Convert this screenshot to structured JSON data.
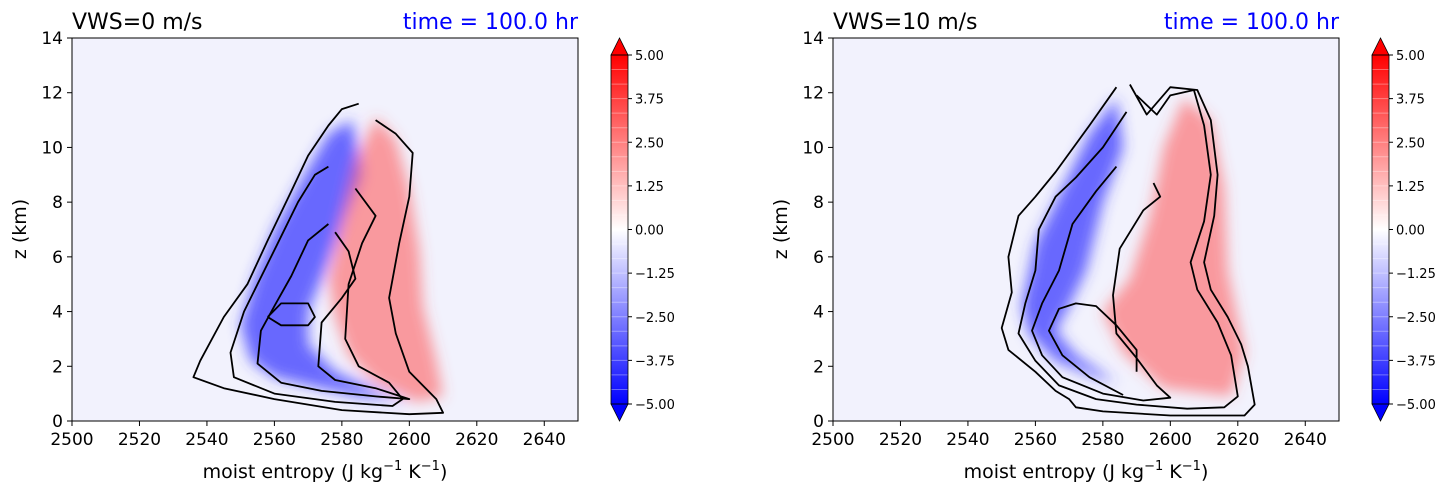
{
  "chart_data": [
    {
      "type": "contour",
      "title": "VWS=0 m/s",
      "time_label": "time = 100.0 hr",
      "xlabel": "moist entropy (J kg",
      "xlabel_sup1": "−1",
      "xlabel_mid": " K",
      "xlabel_sup2": "−1",
      "xlabel_end": ")",
      "ylabel": "z (km)",
      "xlim": [
        2500,
        2650
      ],
      "ylim": [
        0,
        14
      ],
      "xticks": [
        "2500",
        "2520",
        "2540",
        "2560",
        "2580",
        "2600",
        "2620",
        "2640"
      ],
      "yticks": [
        "0",
        "2",
        "4",
        "6",
        "8",
        "10",
        "12",
        "14"
      ],
      "colorbar_ticks": [
        "5.00",
        "3.75",
        "2.50",
        "1.25",
        "0.00",
        "−1.25",
        "−2.50",
        "−3.75",
        "−5.00"
      ],
      "colorbar_range": [
        -5,
        5
      ],
      "colormap": "bwr",
      "neg_lobe": [
        [
          2553,
          2.2
        ],
        [
          2550,
          3.5
        ],
        [
          2554,
          5.2
        ],
        [
          2560,
          7.0
        ],
        [
          2568,
          8.8
        ],
        [
          2576,
          10.5
        ],
        [
          2583,
          11.0
        ],
        [
          2586,
          9.0
        ],
        [
          2580,
          7.2
        ],
        [
          2575,
          5.5
        ],
        [
          2570,
          4.0
        ],
        [
          2570,
          2.8
        ],
        [
          2578,
          1.8
        ],
        [
          2592,
          1.0
        ],
        [
          2600,
          0.7
        ],
        [
          2585,
          0.9
        ],
        [
          2570,
          1.3
        ],
        [
          2560,
          1.6
        ]
      ],
      "pos_lobe": [
        [
          2576,
          5.2
        ],
        [
          2578,
          3.8
        ],
        [
          2582,
          2.4
        ],
        [
          2590,
          1.4
        ],
        [
          2602,
          0.7
        ],
        [
          2610,
          0.9
        ],
        [
          2608,
          2.2
        ],
        [
          2604,
          4.2
        ],
        [
          2603,
          6.2
        ],
        [
          2600,
          8.5
        ],
        [
          2596,
          10.3
        ],
        [
          2590,
          11.1
        ],
        [
          2584,
          9.5
        ],
        [
          2580,
          7.5
        ]
      ],
      "contours": [
        [
          [
            2558,
            3.8
          ],
          [
            2562,
            4.3
          ],
          [
            2570,
            4.3
          ],
          [
            2572,
            3.8
          ],
          [
            2570,
            3.5
          ],
          [
            2562,
            3.5
          ],
          [
            2558,
            3.8
          ]
        ],
        [
          [
            2576,
            7.2
          ],
          [
            2570,
            6.6
          ],
          [
            2565,
            5.3
          ],
          [
            2560,
            4.2
          ],
          [
            2556,
            3.3
          ],
          [
            2555,
            2.1
          ],
          [
            2562,
            1.4
          ],
          [
            2574,
            1.1
          ],
          [
            2590,
            0.9
          ],
          [
            2600,
            0.8
          ],
          [
            2590,
            1.2
          ],
          [
            2578,
            1.5
          ],
          [
            2573,
            2.0
          ],
          [
            2574,
            3.6
          ],
          [
            2580,
            4.5
          ],
          [
            2584,
            5.2
          ],
          [
            2582,
            6.2
          ],
          [
            2578,
            6.9
          ]
        ],
        [
          [
            2576,
            9.3
          ],
          [
            2572,
            9.0
          ],
          [
            2567,
            8.0
          ],
          [
            2561,
            6.5
          ],
          [
            2555,
            5.0
          ],
          [
            2551,
            4.0
          ],
          [
            2547,
            2.5
          ],
          [
            2548,
            1.6
          ],
          [
            2560,
            1.0
          ],
          [
            2578,
            0.7
          ],
          [
            2595,
            0.55
          ],
          [
            2598,
            0.8
          ],
          [
            2594,
            1.4
          ],
          [
            2585,
            2.0
          ],
          [
            2581,
            3.0
          ],
          [
            2582,
            5.0
          ],
          [
            2586,
            6.5
          ],
          [
            2590,
            7.5
          ],
          [
            2584,
            8.5
          ]
        ],
        [
          [
            2585,
            11.6
          ],
          [
            2580,
            11.4
          ],
          [
            2576,
            10.8
          ],
          [
            2570,
            9.7
          ],
          [
            2565,
            8.4
          ],
          [
            2558,
            6.6
          ],
          [
            2552,
            5.0
          ],
          [
            2545,
            3.8
          ],
          [
            2538,
            2.2
          ],
          [
            2536,
            1.6
          ],
          [
            2545,
            1.2
          ],
          [
            2560,
            0.8
          ],
          [
            2580,
            0.4
          ],
          [
            2600,
            0.25
          ],
          [
            2610,
            0.3
          ],
          [
            2608,
            0.8
          ],
          [
            2600,
            1.8
          ],
          [
            2596,
            3.2
          ],
          [
            2594,
            4.5
          ],
          [
            2597,
            6.5
          ],
          [
            2600,
            8.2
          ],
          [
            2601,
            9.8
          ],
          [
            2596,
            10.5
          ],
          [
            2590,
            11.0
          ]
        ]
      ]
    },
    {
      "type": "contour",
      "title": "VWS=10 m/s",
      "time_label": "time = 100.0 hr",
      "xlabel": "moist entropy (J kg",
      "xlabel_sup1": "−1",
      "xlabel_mid": " K",
      "xlabel_sup2": "−1",
      "xlabel_end": ")",
      "ylabel": "z (km)",
      "xlim": [
        2500,
        2650
      ],
      "ylim": [
        0,
        14
      ],
      "xticks": [
        "2500",
        "2520",
        "2540",
        "2560",
        "2580",
        "2600",
        "2620",
        "2640"
      ],
      "yticks": [
        "0",
        "2",
        "4",
        "6",
        "8",
        "10",
        "12",
        "14"
      ],
      "colorbar_ticks": [
        "5.00",
        "3.75",
        "2.50",
        "1.25",
        "0.00",
        "−1.25",
        "−2.50",
        "−3.75",
        "−5.00"
      ],
      "colorbar_range": [
        -5,
        5
      ],
      "colormap": "bwr",
      "neg_lobe": [
        [
          2558,
          3.2
        ],
        [
          2556,
          4.2
        ],
        [
          2560,
          6.5
        ],
        [
          2568,
          8.5
        ],
        [
          2576,
          10.5
        ],
        [
          2584,
          11.8
        ],
        [
          2586,
          10.0
        ],
        [
          2580,
          8.0
        ],
        [
          2575,
          5.5
        ],
        [
          2570,
          4.2
        ],
        [
          2566,
          3.3
        ],
        [
          2572,
          2.4
        ],
        [
          2584,
          1.4
        ],
        [
          2590,
          1.2
        ],
        [
          2578,
          1.6
        ],
        [
          2566,
          2.2
        ]
      ],
      "pos_lobe": [
        [
          2580,
          4.0
        ],
        [
          2586,
          2.5
        ],
        [
          2598,
          1.2
        ],
        [
          2618,
          0.9
        ],
        [
          2622,
          2.5
        ],
        [
          2617,
          5.5
        ],
        [
          2616,
          8.5
        ],
        [
          2612,
          11.0
        ],
        [
          2604,
          11.8
        ],
        [
          2598,
          10.0
        ],
        [
          2594,
          7.5
        ],
        [
          2588,
          5.2
        ]
      ],
      "contours": [
        [
          [
            2586,
            0.95
          ],
          [
            2576,
            1.6
          ],
          [
            2568,
            2.4
          ],
          [
            2564,
            3.3
          ],
          [
            2567,
            4.1
          ],
          [
            2572,
            4.3
          ],
          [
            2578,
            4.2
          ],
          [
            2584,
            3.5
          ],
          [
            2590,
            2.6
          ],
          [
            2590,
            1.8
          ]
        ],
        [
          [
            2584,
            9.3
          ],
          [
            2578,
            8.4
          ],
          [
            2571,
            7.2
          ],
          [
            2567,
            5.5
          ],
          [
            2562,
            4.3
          ],
          [
            2559,
            3.3
          ],
          [
            2562,
            2.4
          ],
          [
            2568,
            1.6
          ],
          [
            2580,
            1.0
          ],
          [
            2592,
            0.75
          ],
          [
            2600,
            0.85
          ],
          [
            2596,
            1.3
          ],
          [
            2590,
            2.3
          ],
          [
            2584,
            3.2
          ],
          [
            2583,
            4.6
          ],
          [
            2585,
            6.3
          ],
          [
            2592,
            7.7
          ],
          [
            2597,
            8.2
          ],
          [
            2595,
            8.7
          ]
        ],
        [
          [
            2587,
            11.3
          ],
          [
            2580,
            10.0
          ],
          [
            2572,
            8.9
          ],
          [
            2566,
            8.2
          ],
          [
            2561,
            7.0
          ],
          [
            2560,
            5.5
          ],
          [
            2557,
            4.3
          ],
          [
            2555,
            3.2
          ],
          [
            2560,
            2.2
          ],
          [
            2567,
            1.3
          ],
          [
            2578,
            0.8
          ],
          [
            2590,
            0.6
          ],
          [
            2605,
            0.45
          ],
          [
            2616,
            0.5
          ],
          [
            2620,
            0.9
          ],
          [
            2618,
            2.4
          ],
          [
            2614,
            3.6
          ],
          [
            2608,
            4.8
          ],
          [
            2606,
            5.8
          ],
          [
            2610,
            7.3
          ],
          [
            2612,
            9.0
          ],
          [
            2610,
            10.8
          ],
          [
            2607,
            12.1
          ],
          [
            2600,
            11.9
          ],
          [
            2596,
            11.2
          ],
          [
            2590,
            11.9
          ]
        ],
        [
          [
            2584,
            12.2
          ],
          [
            2576,
            10.8
          ],
          [
            2566,
            9.1
          ],
          [
            2560,
            8.2
          ],
          [
            2555,
            7.5
          ],
          [
            2552,
            6.0
          ],
          [
            2553,
            4.7
          ],
          [
            2550,
            3.4
          ],
          [
            2552,
            2.6
          ],
          [
            2560,
            1.8
          ],
          [
            2566,
            1.1
          ],
          [
            2570,
            0.8
          ],
          [
            2572,
            0.5
          ],
          [
            2580,
            0.35
          ],
          [
            2600,
            0.2
          ],
          [
            2622,
            0.2
          ],
          [
            2625,
            0.6
          ],
          [
            2623,
            2.0
          ],
          [
            2621,
            2.8
          ],
          [
            2617,
            3.8
          ],
          [
            2612,
            4.8
          ],
          [
            2610,
            5.8
          ],
          [
            2613,
            7.5
          ],
          [
            2614,
            9.0
          ],
          [
            2612,
            11.0
          ],
          [
            2608,
            12.1
          ],
          [
            2600,
            12.2
          ],
          [
            2593,
            11.2
          ],
          [
            2588,
            12.3
          ]
        ]
      ]
    }
  ]
}
